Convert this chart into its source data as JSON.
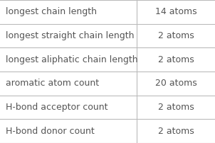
{
  "rows": [
    {
      "label": "longest chain length",
      "value": "14 atoms"
    },
    {
      "label": "longest straight chain length",
      "value": "2 atoms"
    },
    {
      "label": "longest aliphatic chain length",
      "value": "2 atoms"
    },
    {
      "label": "aromatic atom count",
      "value": "20 atoms"
    },
    {
      "label": "H-bond acceptor count",
      "value": "2 atoms"
    },
    {
      "label": "H-bond donor count",
      "value": "2 atoms"
    }
  ],
  "bg_color": "#ffffff",
  "border_color": "#bbbbbb",
  "text_color": "#555555",
  "font_size": 9.0,
  "col_split": 0.635,
  "figsize": [
    3.02,
    2.02
  ],
  "dpi": 100
}
